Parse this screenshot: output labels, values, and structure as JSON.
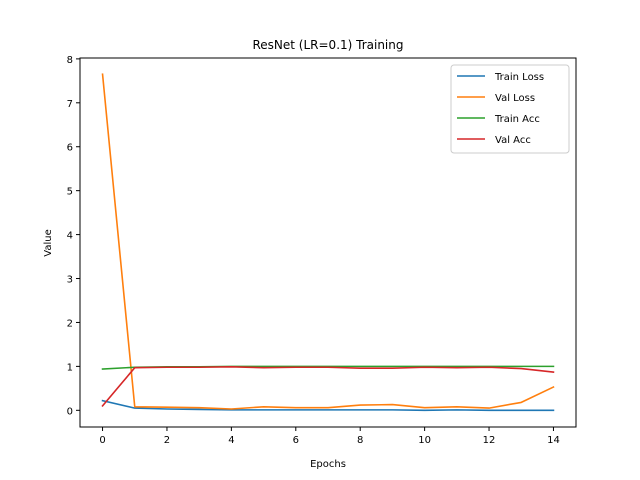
{
  "chart_data": {
    "type": "line",
    "title": "ResNet (LR=0.1) Training",
    "xlabel": "Epochs",
    "ylabel": "Value",
    "xlim": [
      -0.7,
      14.7
    ],
    "ylim": [
      -0.38,
      8.02
    ],
    "xticks": [
      0,
      2,
      4,
      6,
      8,
      10,
      12,
      14
    ],
    "yticks": [
      0,
      1,
      2,
      3,
      4,
      5,
      6,
      7,
      8
    ],
    "grid": false,
    "legend_position": "top-right",
    "x": [
      0,
      1,
      2,
      3,
      4,
      5,
      6,
      7,
      8,
      9,
      10,
      11,
      12,
      13,
      14
    ],
    "series": [
      {
        "name": "Train Loss",
        "color": "#1f77b4",
        "values": [
          0.22,
          0.05,
          0.03,
          0.02,
          0.01,
          0.01,
          0.01,
          0.01,
          0.01,
          0.01,
          0.0,
          0.01,
          0.0,
          0.0,
          0.0
        ]
      },
      {
        "name": "Val Loss",
        "color": "#ff7f0e",
        "values": [
          7.65,
          0.08,
          0.07,
          0.06,
          0.03,
          0.08,
          0.06,
          0.06,
          0.12,
          0.13,
          0.06,
          0.08,
          0.05,
          0.18,
          0.53
        ]
      },
      {
        "name": "Train Acc",
        "color": "#2ca02c",
        "values": [
          0.94,
          0.98,
          0.99,
          0.99,
          1.0,
          1.0,
          1.0,
          1.0,
          1.0,
          1.0,
          1.0,
          1.0,
          1.0,
          1.0,
          1.0
        ]
      },
      {
        "name": "Val Acc",
        "color": "#d62728",
        "values": [
          0.1,
          0.97,
          0.98,
          0.98,
          0.99,
          0.97,
          0.98,
          0.98,
          0.96,
          0.96,
          0.98,
          0.97,
          0.98,
          0.95,
          0.87
        ]
      }
    ]
  }
}
